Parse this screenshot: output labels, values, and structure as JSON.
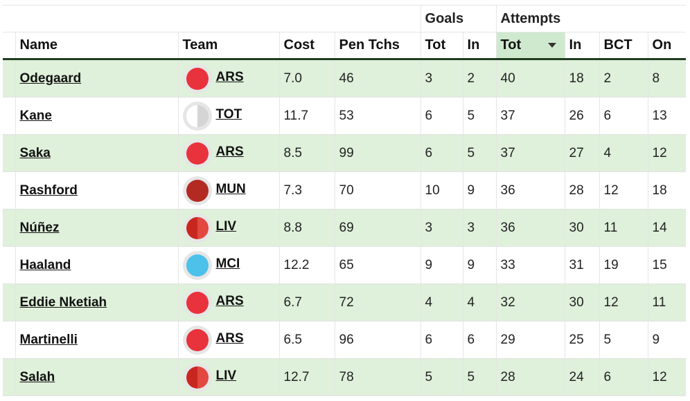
{
  "header": {
    "groups": {
      "goals": "Goals",
      "attempts": "Attempts"
    },
    "columns": {
      "name": "Name",
      "team": "Team",
      "cost": "Cost",
      "pen_tchs": "Pen Tchs",
      "goals_tot": "Tot",
      "goals_in": "In",
      "attempts_tot": "Tot",
      "attempts_in": "In",
      "bct": "BCT",
      "on": "On"
    },
    "sorted_column": "attempts_tot",
    "sort_direction": "descending"
  },
  "teams": {
    "ARS": {
      "left": "#e8323c",
      "right": "#e8323c"
    },
    "TOT": {
      "left": "#ffffff",
      "right": "#d5d5d5"
    },
    "MUN": {
      "left": "#b32a22",
      "right": "#b32a22"
    },
    "LIV": {
      "left": "#c8271f",
      "right": "#e2483f"
    },
    "MCI": {
      "left": "#4cc1ea",
      "right": "#4cc1ea"
    }
  },
  "rows": [
    {
      "name": "Odegaard",
      "team": "ARS",
      "cost": "7.0",
      "pen_tchs": "46",
      "goals_tot": "3",
      "goals_in": "2",
      "attempts_tot": "40",
      "attempts_in": "18",
      "bct": "2",
      "on": "8"
    },
    {
      "name": "Kane",
      "team": "TOT",
      "cost": "11.7",
      "pen_tchs": "53",
      "goals_tot": "6",
      "goals_in": "5",
      "attempts_tot": "37",
      "attempts_in": "26",
      "bct": "6",
      "on": "13"
    },
    {
      "name": "Saka",
      "team": "ARS",
      "cost": "8.5",
      "pen_tchs": "99",
      "goals_tot": "6",
      "goals_in": "5",
      "attempts_tot": "37",
      "attempts_in": "27",
      "bct": "4",
      "on": "12"
    },
    {
      "name": "Rashford",
      "team": "MUN",
      "cost": "7.3",
      "pen_tchs": "70",
      "goals_tot": "10",
      "goals_in": "9",
      "attempts_tot": "36",
      "attempts_in": "28",
      "bct": "12",
      "on": "18"
    },
    {
      "name": "Núñez",
      "team": "LIV",
      "cost": "8.8",
      "pen_tchs": "69",
      "goals_tot": "3",
      "goals_in": "3",
      "attempts_tot": "36",
      "attempts_in": "30",
      "bct": "11",
      "on": "14"
    },
    {
      "name": "Haaland",
      "team": "MCI",
      "cost": "12.2",
      "pen_tchs": "65",
      "goals_tot": "9",
      "goals_in": "9",
      "attempts_tot": "33",
      "attempts_in": "31",
      "bct": "19",
      "on": "15"
    },
    {
      "name": "Eddie Nketiah",
      "team": "ARS",
      "cost": "6.7",
      "pen_tchs": "72",
      "goals_tot": "4",
      "goals_in": "4",
      "attempts_tot": "32",
      "attempts_in": "30",
      "bct": "12",
      "on": "11"
    },
    {
      "name": "Martinelli",
      "team": "ARS",
      "cost": "6.5",
      "pen_tchs": "96",
      "goals_tot": "6",
      "goals_in": "6",
      "attempts_tot": "29",
      "attempts_in": "25",
      "bct": "5",
      "on": "9"
    },
    {
      "name": "Salah",
      "team": "LIV",
      "cost": "12.7",
      "pen_tchs": "78",
      "goals_tot": "5",
      "goals_in": "5",
      "attempts_tot": "28",
      "attempts_in": "24",
      "bct": "6",
      "on": "12"
    }
  ]
}
